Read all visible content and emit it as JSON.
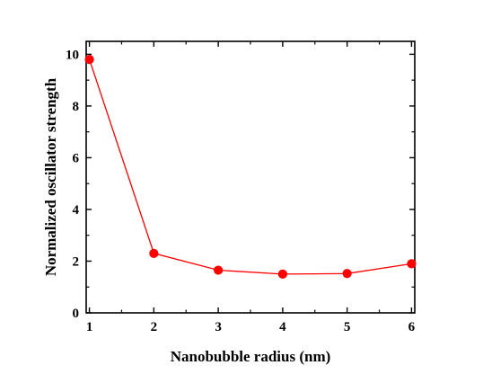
{
  "chart_data": {
    "type": "line",
    "title": "",
    "xlabel": "Nanobubble radius (nm)",
    "ylabel": "Normalized oscillator strength",
    "x": [
      1,
      2,
      3,
      4,
      5,
      6
    ],
    "series": [
      {
        "name": "",
        "values": [
          9.8,
          2.3,
          1.65,
          1.5,
          1.52,
          1.9
        ],
        "color": "#ff0000"
      }
    ],
    "xlim": [
      0.95,
      6.05
    ],
    "ylim": [
      0,
      10.5
    ],
    "xticks": [
      "1",
      "2",
      "3",
      "4",
      "5",
      "6"
    ],
    "yticks": [
      "0",
      "2",
      "4",
      "6",
      "8",
      "10"
    ],
    "grid": false,
    "legend": "none"
  }
}
